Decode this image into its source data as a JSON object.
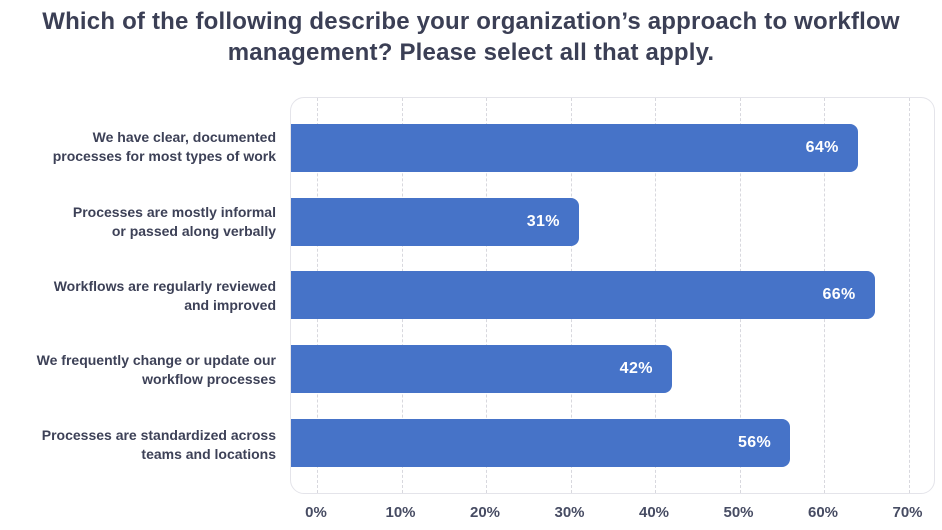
{
  "title": "Which of the following describe your organization’s approach to workflow management? Please select all that apply.",
  "colors": {
    "bar": "#4673c8",
    "title_text": "#3b3f55",
    "category_text": "#3d4157",
    "axis_text": "#474c63",
    "gridline": "#d8d8de",
    "plot_border": "#e4e4ea",
    "value_text": "#ffffff",
    "background": "#ffffff"
  },
  "chart_data": {
    "type": "bar",
    "orientation": "horizontal",
    "title": "Which of the following describe your organization’s approach to workflow management? Please select all that apply.",
    "categories": [
      "We have clear, documented processes for most types of work",
      "Processes are mostly informal or passed along verbally",
      "Workflows are regularly reviewed and improved",
      "We frequently change or update our workflow processes",
      "Processes are standardized across teams and locations"
    ],
    "category_lines": [
      [
        "We have clear, documented",
        "processes for most types of work"
      ],
      [
        "Processes are mostly informal",
        "or passed along verbally"
      ],
      [
        "Workflows are regularly reviewed",
        "and improved"
      ],
      [
        "We frequently change or update our",
        "workflow processes"
      ],
      [
        "Processes are standardized across",
        "teams and locations"
      ]
    ],
    "values": [
      64,
      31,
      66,
      42,
      56
    ],
    "value_labels": [
      "64%",
      "31%",
      "66%",
      "42%",
      "56%"
    ],
    "x_tick_labels": [
      "0%",
      "10%",
      "20%",
      "30%",
      "40%",
      "50%",
      "60%",
      "70%"
    ],
    "xlim": [
      0,
      70
    ],
    "grid": "vertical-dashed",
    "legend": "none"
  }
}
